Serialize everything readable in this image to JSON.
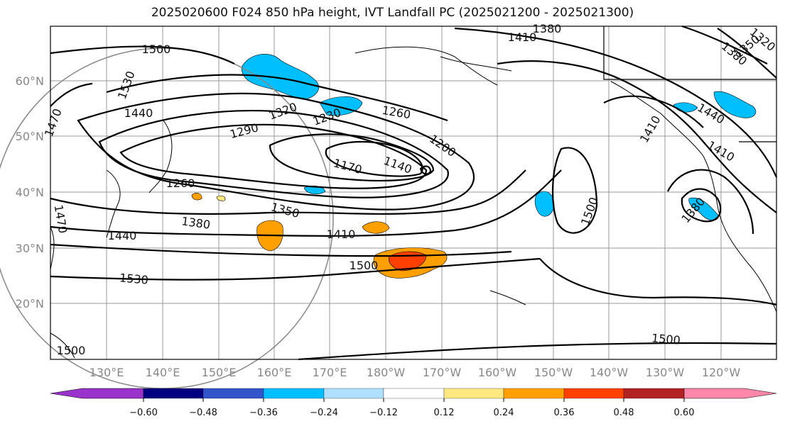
{
  "title": "2025020600 F024 850 hPa height, IVT Landfall PC (2025021200 - 2025021300)",
  "lat_labels": [
    "60°N",
    "50°N",
    "40°N",
    "30°N",
    "20°N"
  ],
  "lon_labels": [
    "130°E",
    "140°E",
    "150°E",
    "160°E",
    "170°E",
    "180°W",
    "170°W",
    "160°W",
    "150°W",
    "140°W",
    "130°W",
    "120°W"
  ],
  "contour_labels": [
    "1380",
    "1410",
    "1500",
    "1530",
    "1440",
    "1320",
    "1290",
    "1230",
    "1260",
    "1200",
    "1170",
    "1140",
    "1260",
    "1350",
    "1380",
    "1410",
    "1500",
    "1440",
    "1530",
    "1500",
    "1500",
    "1440",
    "1410",
    "1410",
    "1380",
    "1350",
    "1380",
    "1320",
    "1470",
    "1470",
    "1500"
  ],
  "colorbar": {
    "ticks": [
      "−0.60",
      "−0.48",
      "−0.36",
      "−0.24",
      "−0.12",
      "0.12",
      "0.24",
      "0.36",
      "0.48",
      "0.60"
    ],
    "colors": [
      "#9933cc",
      "#000080",
      "#3355cc",
      "#00bfff",
      "#b0e0ff",
      "#ffffff",
      "#ffe880",
      "#ffa000",
      "#ff4000",
      "#b22222",
      "#ff88aa"
    ]
  }
}
